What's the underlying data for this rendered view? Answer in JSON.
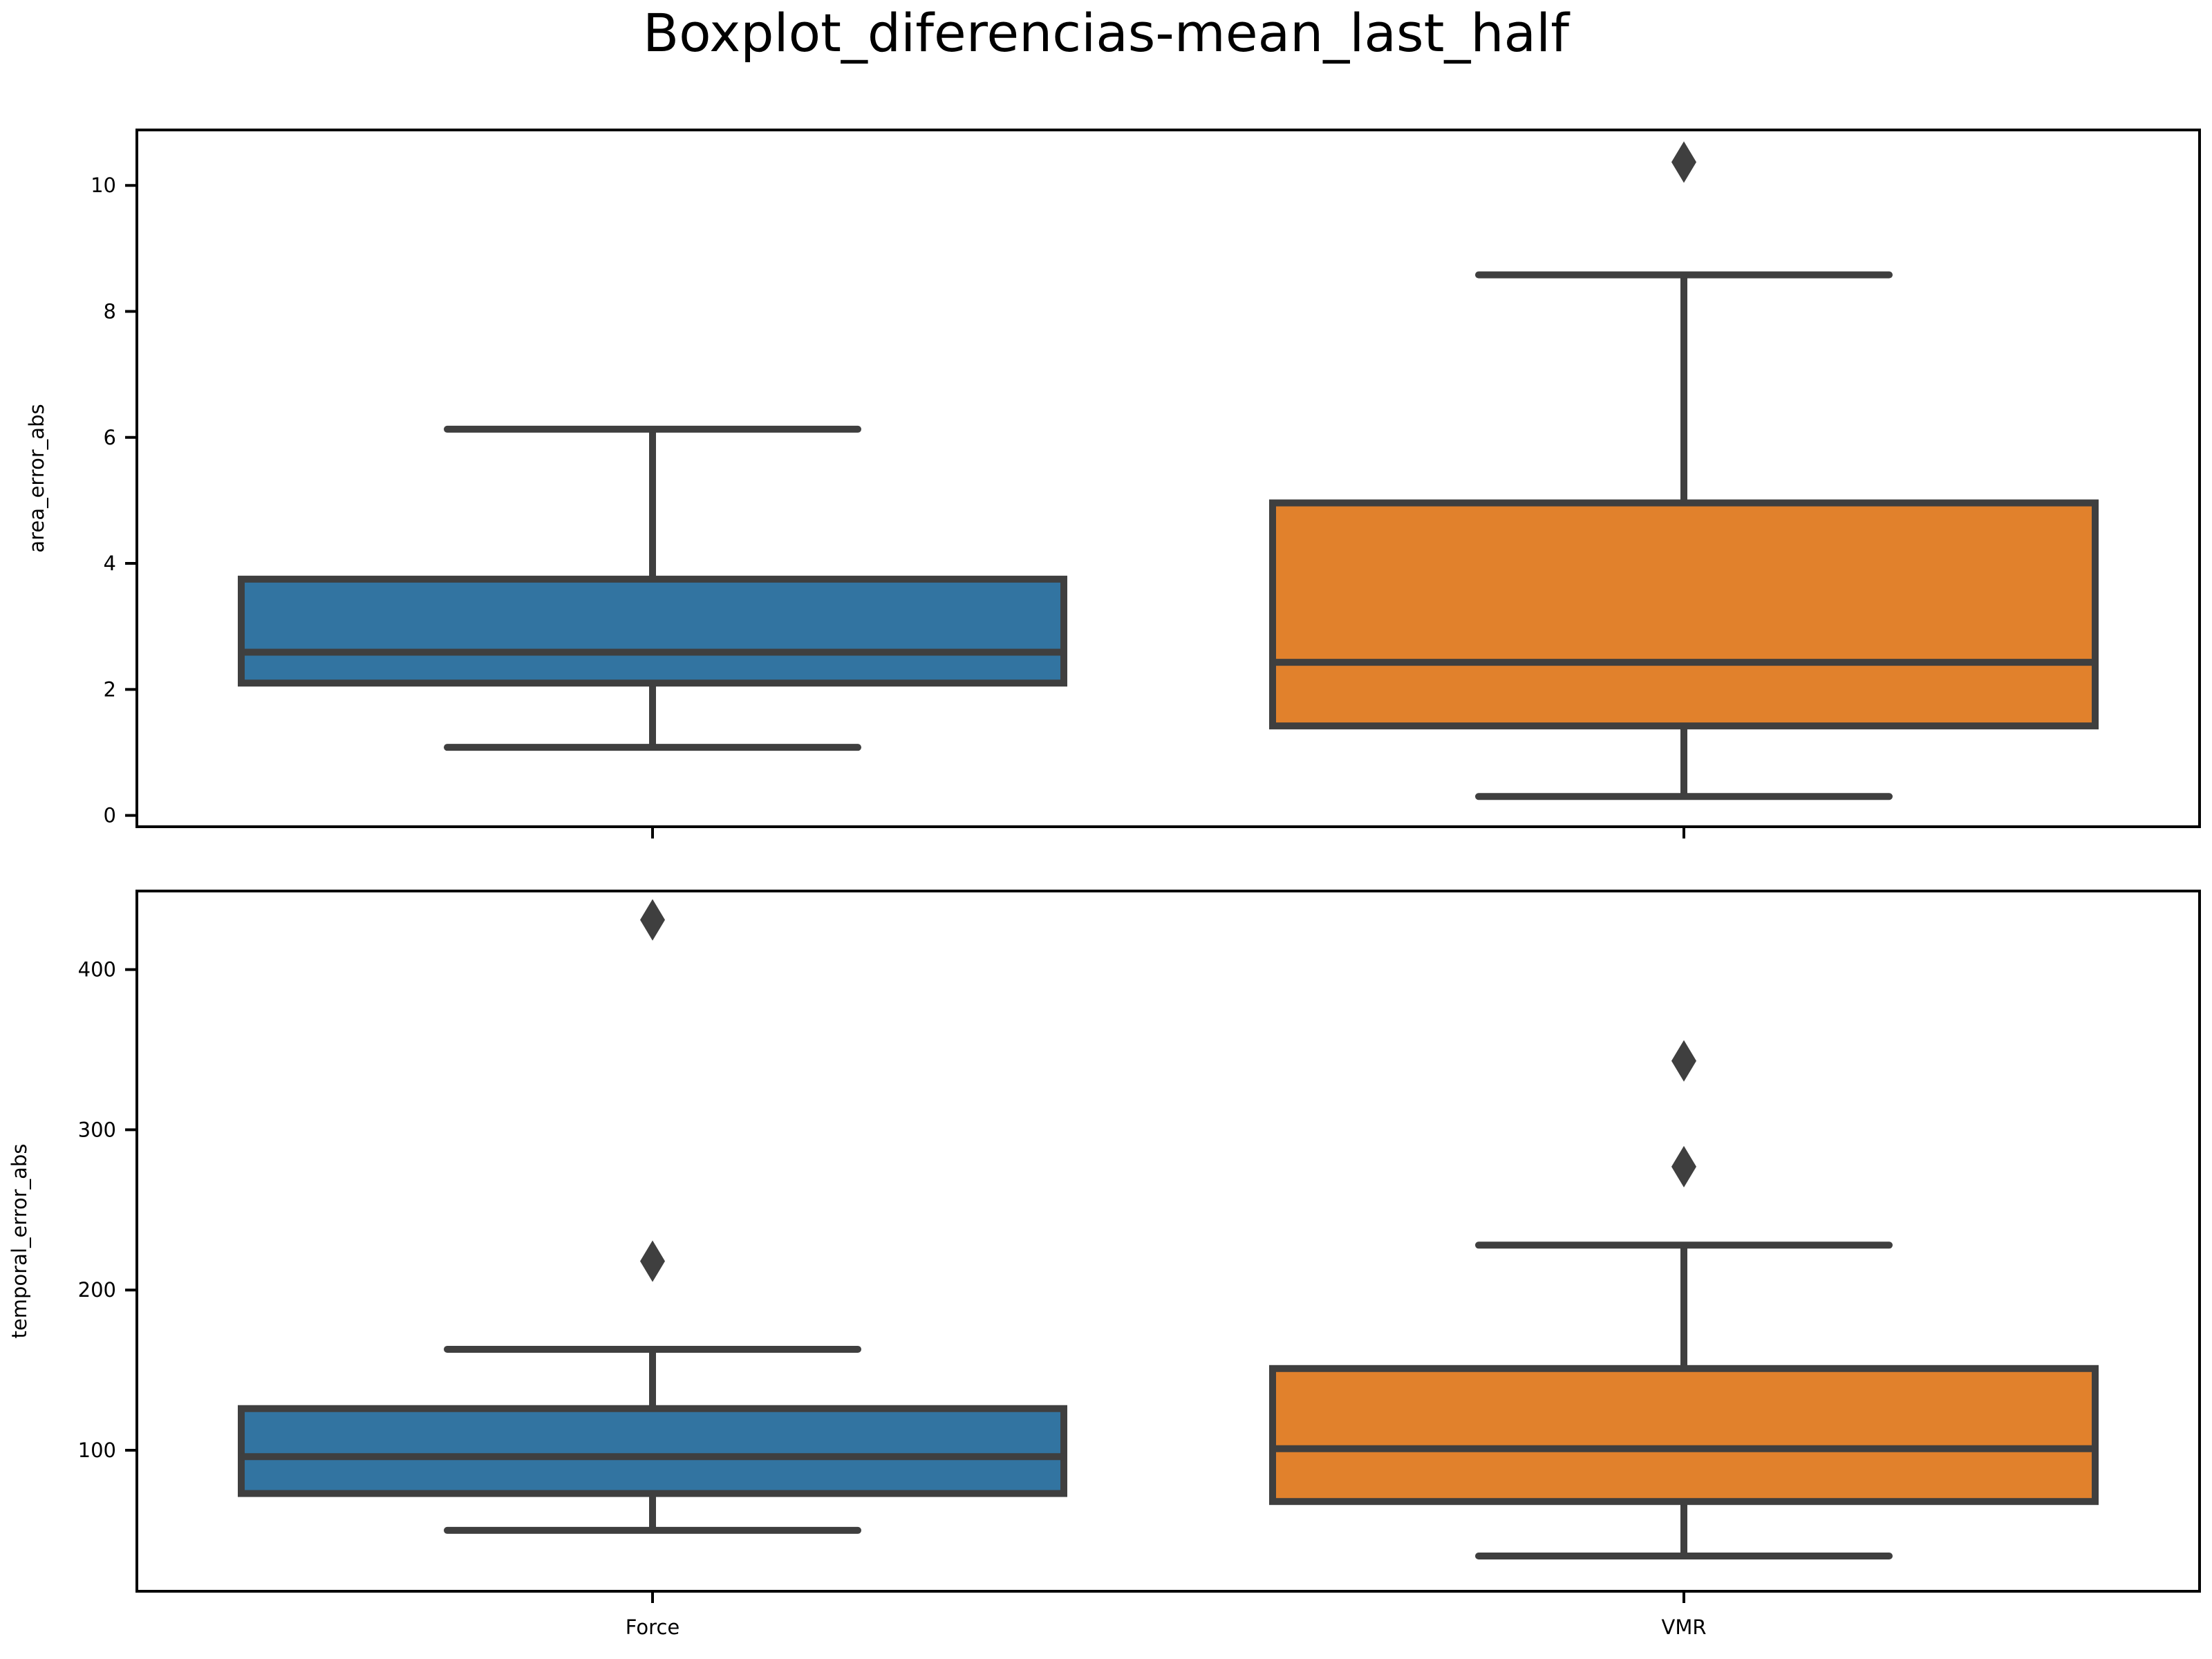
{
  "chart_data": {
    "title": "Boxplot_diferencias-mean_last_half",
    "type": "box",
    "categories": [
      "Force",
      "VMR"
    ],
    "colors": {
      "Force": "#3274a1",
      "VMR": "#e1812c",
      "edge": "#3f3f3f"
    },
    "panels": [
      {
        "ylabel": "area_error_abs",
        "ylim": [
          -0.18,
          10.88
        ],
        "yticks": [
          0,
          2,
          4,
          6,
          8,
          10
        ],
        "show_xticklabels": false,
        "boxes": [
          {
            "category": "Force",
            "whisker_low": 1.08,
            "q1": 2.1,
            "median": 2.59,
            "q3": 3.75,
            "whisker_high": 6.13,
            "outliers": []
          },
          {
            "category": "VMR",
            "whisker_low": 0.3,
            "q1": 1.42,
            "median": 2.43,
            "q3": 4.96,
            "whisker_high": 8.58,
            "outliers": [
              10.37
            ]
          }
        ]
      },
      {
        "ylabel": "temporal_error_abs",
        "ylim": [
          12,
          449
        ],
        "yticks": [
          100,
          200,
          300,
          400
        ],
        "show_xticklabels": true,
        "boxes": [
          {
            "category": "Force",
            "whisker_low": 50,
            "q1": 73,
            "median": 96,
            "q3": 126,
            "whisker_high": 163,
            "outliers": [
              218,
              431
            ]
          },
          {
            "category": "VMR",
            "whisker_low": 34,
            "q1": 68,
            "median": 101,
            "q3": 151,
            "whisker_high": 228,
            "outliers": [
              277,
              343
            ]
          }
        ]
      }
    ]
  }
}
